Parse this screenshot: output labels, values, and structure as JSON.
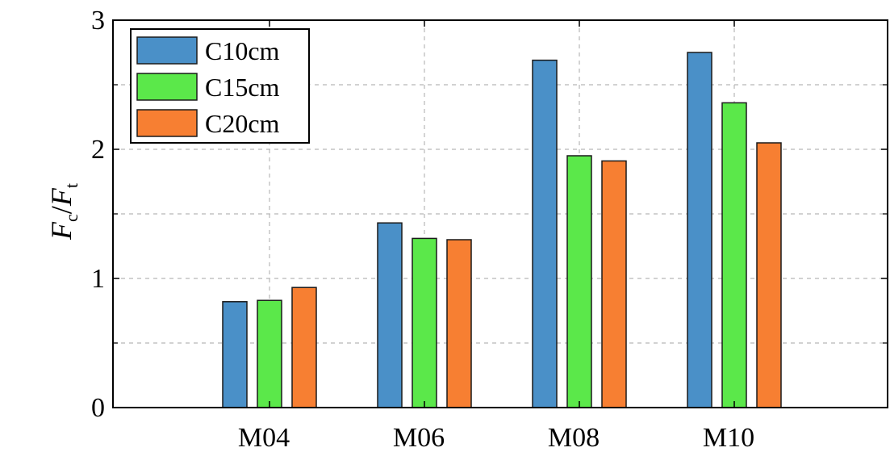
{
  "chart_data": {
    "type": "bar",
    "categories": [
      "M04",
      "M06",
      "M08",
      "M10"
    ],
    "series": [
      {
        "name": "C10cm",
        "values": [
          0.82,
          1.43,
          2.69,
          2.75
        ],
        "color": "#4a90c8"
      },
      {
        "name": "C15cm",
        "values": [
          0.83,
          1.31,
          1.95,
          2.36
        ],
        "color": "#5be84a"
      },
      {
        "name": "C20cm",
        "values": [
          0.93,
          1.3,
          1.91,
          2.05
        ],
        "color": "#f77f32"
      }
    ],
    "ylabel": {
      "main1": "F",
      "sub1": "c",
      "slash": "/",
      "main2": "F",
      "sub2": "t"
    },
    "ylim": [
      0,
      3
    ],
    "yticks": [
      "0",
      "1",
      "2",
      "3"
    ],
    "yminor": [
      0.5,
      1.5,
      2.5
    ],
    "grid": true,
    "legend_position": "top-left"
  }
}
